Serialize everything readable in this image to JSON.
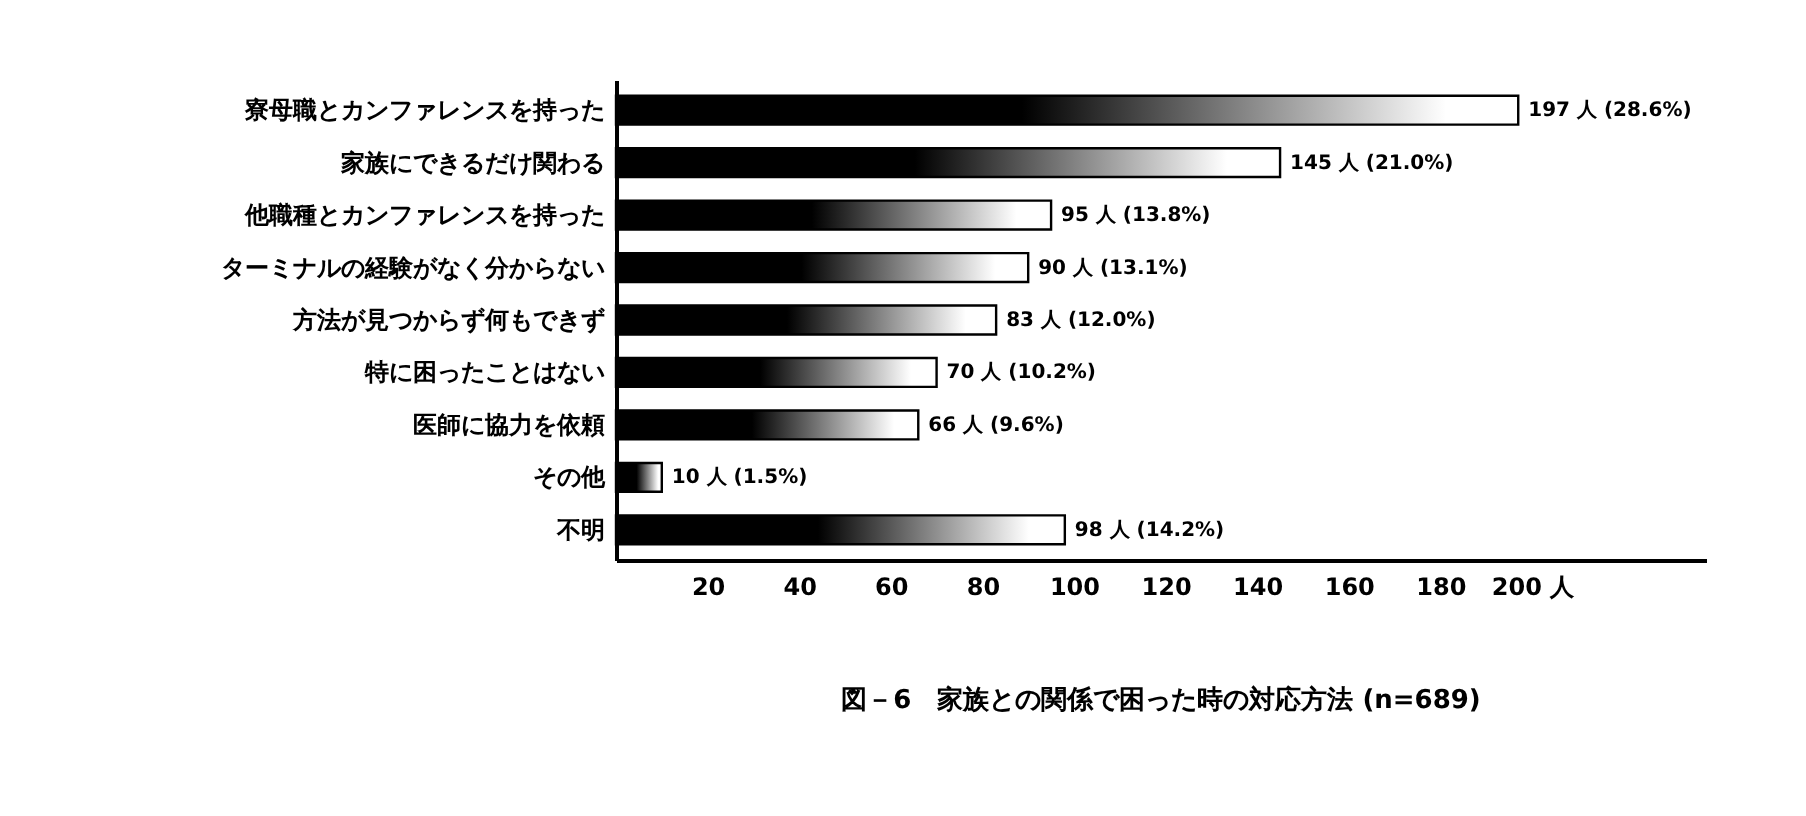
{
  "chart_data": {
    "type": "bar",
    "orientation": "horizontal",
    "title": "図－6　家族との関係で困った時の対応方法 (n=689)",
    "categories": [
      "寮母職とカンファレンスを持った",
      "家族にできるだけ関わる",
      "他職種とカンファレンスを持った",
      "ターミナルの経験がなく分からない",
      "方法が見つからず何もできず",
      "特に困ったことはない",
      "医師に協力を依頼",
      "その他",
      "不明"
    ],
    "values": [
      197,
      145,
      95,
      90,
      83,
      70,
      66,
      10,
      98
    ],
    "value_labels": [
      "197 人 (28.6%)",
      "145 人 (21.0%)",
      "95 人 (13.8%)",
      "90 人 (13.1%)",
      "83 人 (12.0%)",
      "70 人 (10.2%)",
      "66 人 (9.6%)",
      "10 人 (1.5%)",
      "98 人 (14.2%)"
    ],
    "color": "#000000",
    "xlim": [
      0,
      238
    ],
    "xticks": [
      20,
      40,
      60,
      80,
      100,
      120,
      140,
      160,
      180,
      {
        "value": 200,
        "label": "200 人"
      }
    ],
    "grid": false
  }
}
